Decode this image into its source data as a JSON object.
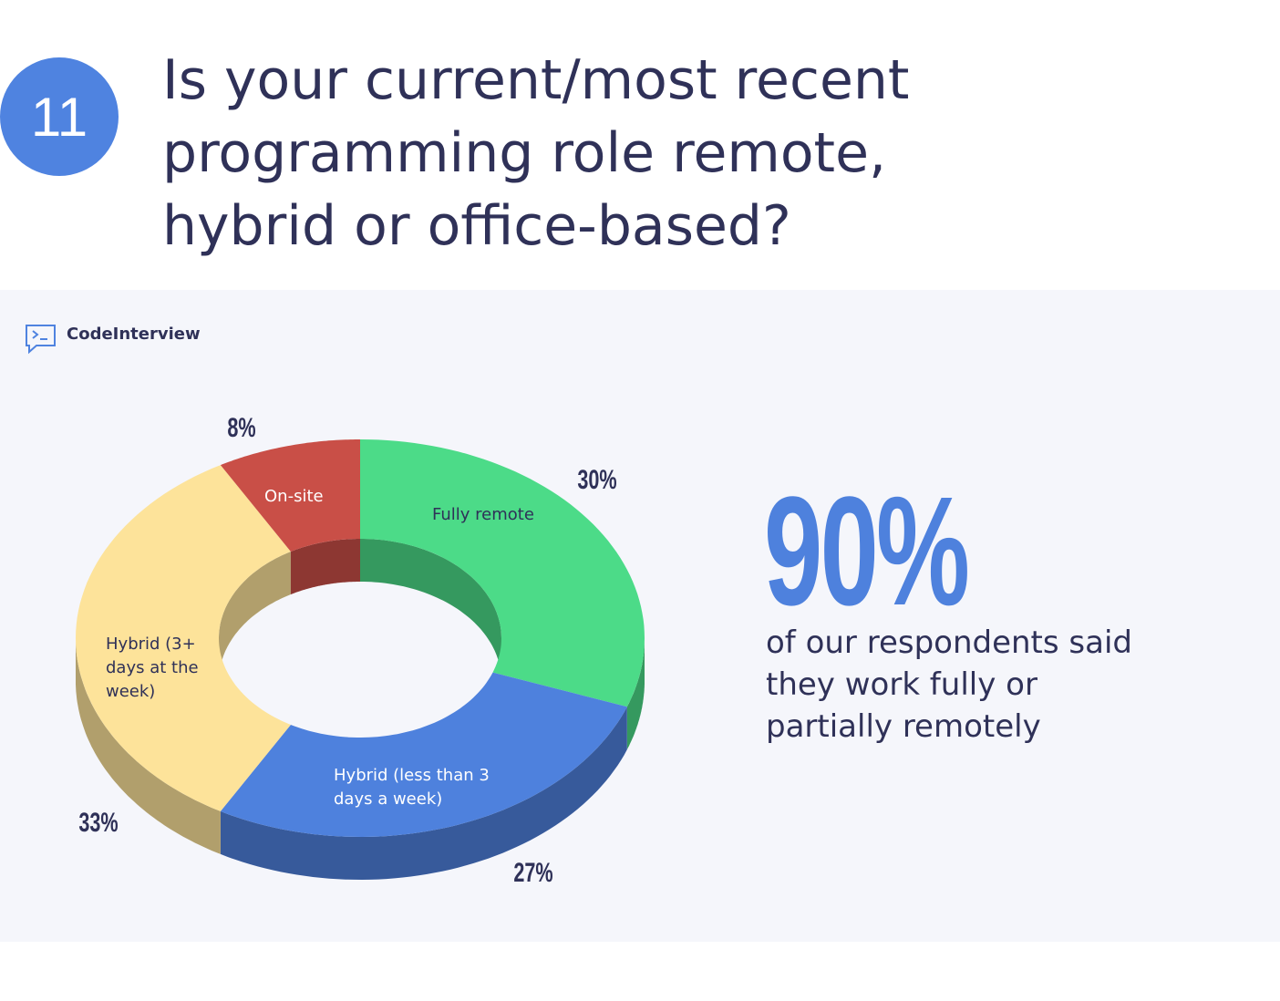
{
  "header": {
    "number": "11",
    "title": "Is your current/most recent programming role remote, hybrid or office-based?"
  },
  "brand": "CodeInterview",
  "chart_data": {
    "type": "pie",
    "donut": true,
    "categories": [
      "Fully remote",
      "Hybrid (less than 3 days a week)",
      "Hybrid (3+ days at the week)",
      "On-site"
    ],
    "values": [
      30,
      27,
      33,
      8
    ],
    "value_labels": [
      "30%",
      "27%",
      "33%",
      "8%"
    ],
    "colors": [
      "#4cdb88",
      "#4e81dd",
      "#fde39a",
      "#c94f47"
    ]
  },
  "callout": {
    "stat": "90%",
    "text": "of our respondents said they work fully or partially remotely"
  }
}
